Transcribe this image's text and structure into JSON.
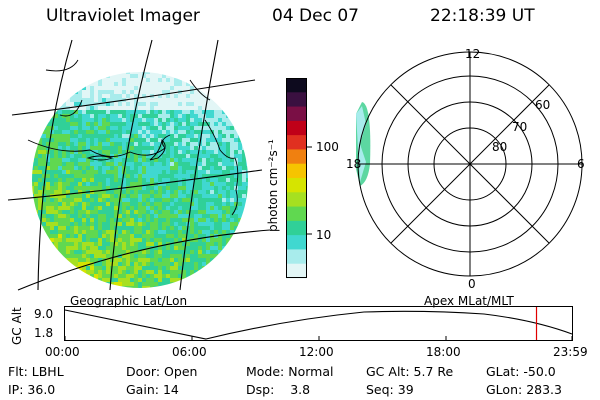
{
  "header": {
    "instrument": "Ultraviolet Imager",
    "date": "04 Dec 07",
    "time": "22:18:39 UT"
  },
  "colorbar": {
    "unit_label": "photon cm⁻²s⁻¹",
    "ticks": [
      "100",
      "10"
    ],
    "colors": [
      "#0d0a1e",
      "#3a1040",
      "#7a0f45",
      "#c00018",
      "#e03020",
      "#f08010",
      "#f6c400",
      "#d6e400",
      "#a6e020",
      "#60d850",
      "#30d098",
      "#40d8d0",
      "#a8ecec",
      "#e2f6f6"
    ]
  },
  "polar_plot": {
    "mlt_labels": {
      "top": "12",
      "right": "6",
      "bottom": "0",
      "left": "18"
    },
    "lat_labels": [
      "60",
      "70",
      "80"
    ]
  },
  "altitude_plot": {
    "left_title": "Geographic Lat/Lon",
    "right_title": "Apex MLat/MLT",
    "axis_label": "GC Alt",
    "y_ticks": [
      "9.0",
      "1.8"
    ],
    "x_ticks": [
      "00:00",
      "06:00",
      "12:00",
      "18:00",
      "23:59"
    ],
    "current_time_fraction": 0.93,
    "marker_color": "#e00000"
  },
  "status": {
    "row1": [
      {
        "label": "Flt:",
        "value": "LBHL"
      },
      {
        "label": "Door:",
        "value": "Open"
      },
      {
        "label": "Mode:",
        "value": "Normal"
      },
      {
        "label": "GC Alt:",
        "value": "5.7 Re"
      },
      {
        "label": "GLat:",
        "value": "-50.0"
      }
    ],
    "row2": [
      {
        "label": "IP:",
        "value": "36.0"
      },
      {
        "label": "Gain:",
        "value": "14"
      },
      {
        "label": "Dsp:",
        "value": "3.8"
      },
      {
        "label": "Seq:",
        "value": "39"
      },
      {
        "label": "GLon:",
        "value": "283.3"
      }
    ]
  }
}
